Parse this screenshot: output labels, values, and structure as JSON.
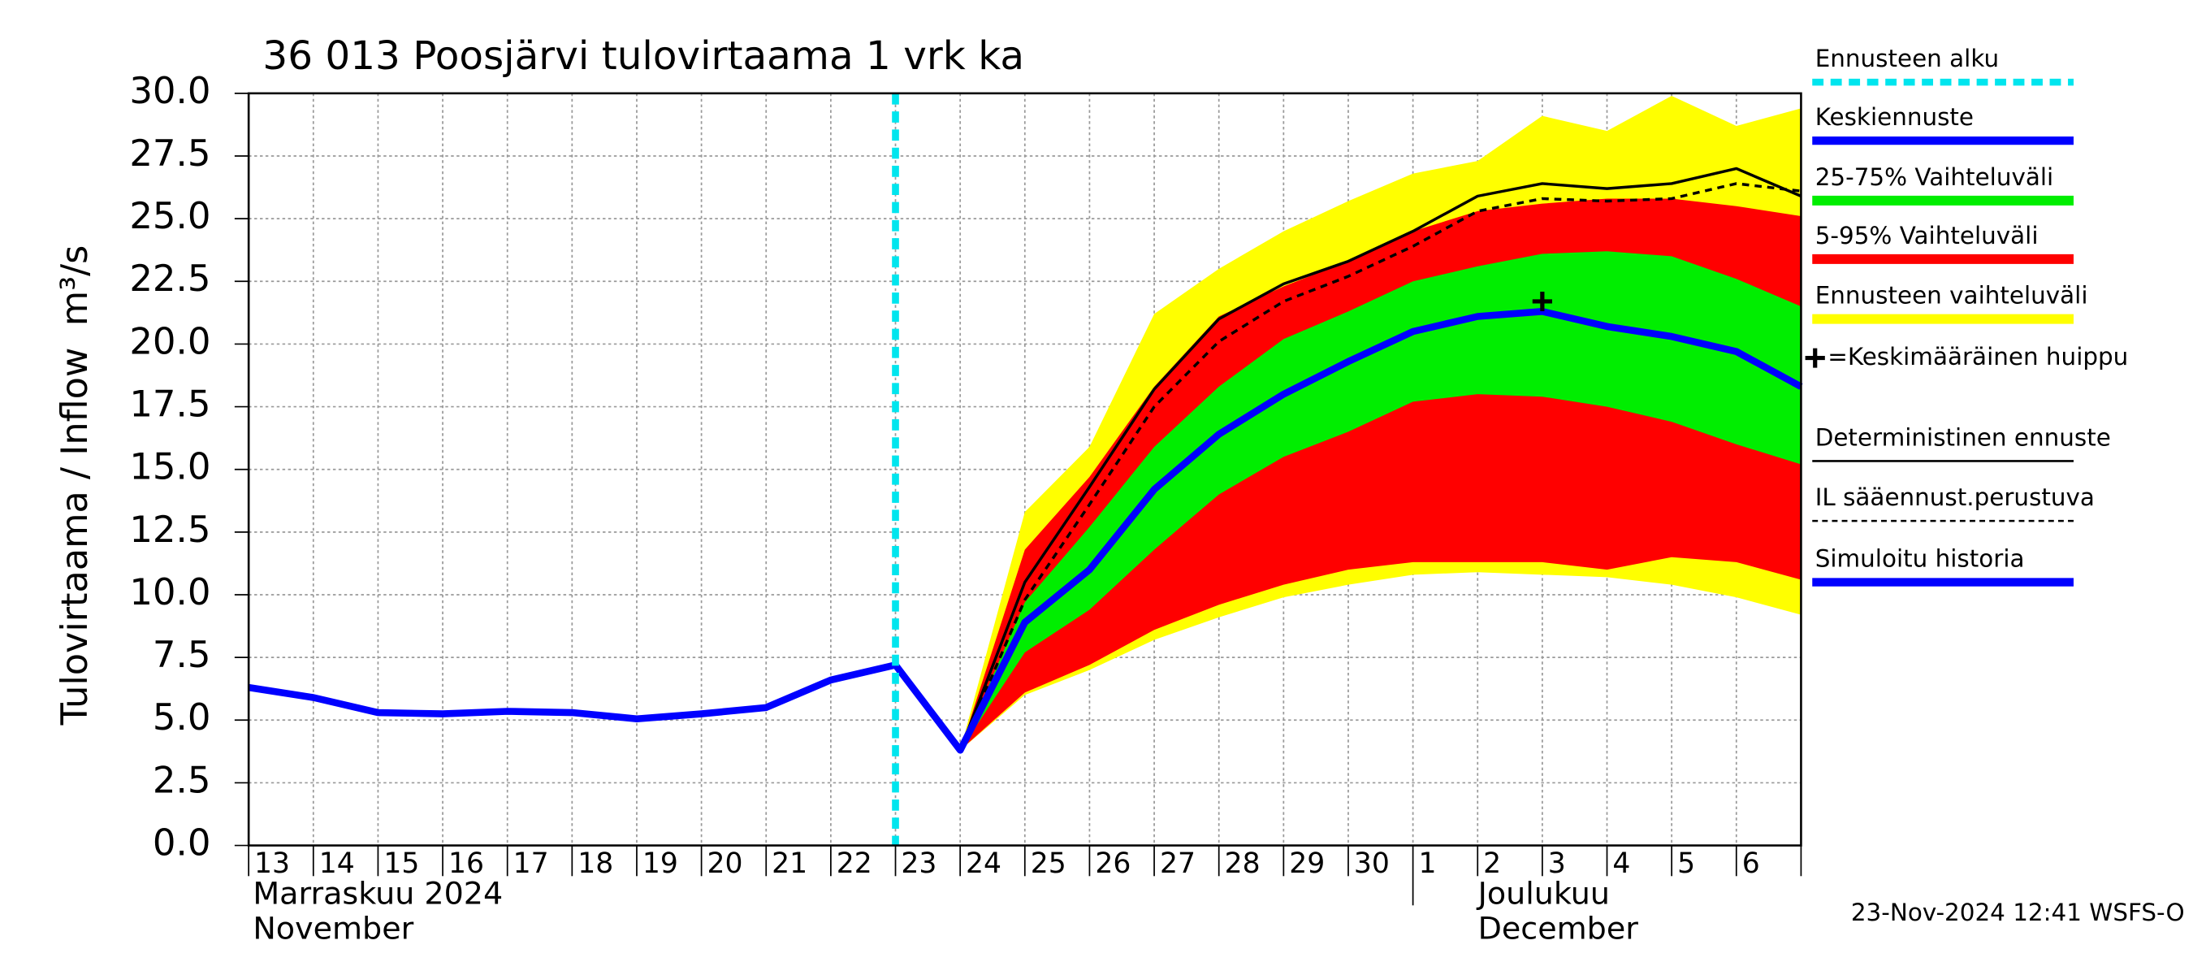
{
  "chart_data": {
    "type": "line",
    "title": "36 013 Poosjärvi tulovirtaama 1 vrk ka",
    "y_label": "Tulovirtaama / Inflow",
    "y_unit": "m³/s",
    "months": [
      [
        "Marraskuu 2024",
        "November"
      ],
      [
        "Joulukuu",
        "December"
      ]
    ],
    "timestamp": "23-Nov-2024 12:41 WSFS-O",
    "categories": [
      "13",
      "14",
      "15",
      "16",
      "17",
      "18",
      "19",
      "20",
      "21",
      "22",
      "23",
      "24",
      "25",
      "26",
      "27",
      "28",
      "29",
      "30",
      "1",
      "2",
      "3",
      "4",
      "5",
      "6",
      null
    ],
    "ylim": [
      0,
      30
    ],
    "yticks": [
      {
        "value": 0,
        "label": "0.0"
      },
      2.5,
      {
        "value": 5,
        "label": "5.0"
      },
      7.5,
      {
        "value": 10,
        "label": "10.0"
      },
      12.5,
      {
        "value": 15,
        "label": "15.0"
      },
      17.5,
      {
        "value": 20,
        "label": "20.0"
      },
      22.5,
      {
        "value": 25,
        "label": "25.0"
      },
      27.5,
      {
        "value": 30,
        "label": "30.0"
      }
    ],
    "grid": true,
    "series": [
      {
        "name": "Ennusteen alku",
        "color": "#00e5ee",
        "x": "23"
      },
      {
        "name": "Keskiennuste",
        "color": "#0000ff",
        "values": [
          null,
          null,
          null,
          null,
          null,
          null,
          null,
          null,
          null,
          null,
          7.2,
          3.8,
          8.9,
          11.0,
          14.2,
          16.4,
          18.0,
          19.3,
          20.5,
          21.1,
          21.3,
          20.7,
          20.3,
          19.7,
          18.3
        ]
      },
      {
        "name": "25-75% Vaihteluväli",
        "color": "#00ee00",
        "high": [
          null,
          null,
          null,
          null,
          null,
          null,
          null,
          null,
          null,
          null,
          null,
          3.8,
          9.7,
          12.7,
          15.9,
          18.3,
          20.2,
          21.3,
          22.5,
          23.1,
          23.6,
          23.7,
          23.5,
          22.6,
          21.5
        ],
        "low": [
          null,
          null,
          null,
          null,
          null,
          null,
          null,
          null,
          null,
          null,
          null,
          3.8,
          7.7,
          9.4,
          11.8,
          14.0,
          15.5,
          16.5,
          17.7,
          18.0,
          17.9,
          17.5,
          16.9,
          16.0,
          15.2
        ]
      },
      {
        "name": "5-95% Vaihteluväli",
        "color": "#ff0000",
        "high": [
          null,
          null,
          null,
          null,
          null,
          null,
          null,
          null,
          null,
          null,
          null,
          3.8,
          11.8,
          14.7,
          18.3,
          21.1,
          22.3,
          23.3,
          24.5,
          25.3,
          25.6,
          25.8,
          25.8,
          25.5,
          25.1
        ],
        "low": [
          null,
          null,
          null,
          null,
          null,
          null,
          null,
          null,
          null,
          null,
          null,
          3.8,
          6.1,
          7.2,
          8.6,
          9.6,
          10.4,
          11.0,
          11.3,
          11.3,
          11.3,
          11.0,
          11.5,
          11.3,
          10.6
        ]
      },
      {
        "name": "Ennusteen vaihteluväli",
        "color": "#ffff00",
        "high": [
          null,
          null,
          null,
          null,
          null,
          null,
          null,
          null,
          null,
          null,
          null,
          3.8,
          13.3,
          15.9,
          21.2,
          23.0,
          24.5,
          25.7,
          26.8,
          27.3,
          29.1,
          28.5,
          29.9,
          28.7,
          29.4
        ],
        "low": [
          null,
          null,
          null,
          null,
          null,
          null,
          null,
          null,
          null,
          null,
          null,
          3.8,
          6.0,
          7.0,
          8.2,
          9.1,
          9.9,
          10.4,
          10.8,
          10.9,
          10.8,
          10.7,
          10.4,
          9.9,
          9.2
        ]
      },
      {
        "name": "=Keskimääräinen huippu",
        "color": "#000000",
        "marker": "+",
        "values": [
          null,
          null,
          null,
          null,
          null,
          null,
          null,
          null,
          null,
          null,
          null,
          null,
          null,
          null,
          null,
          null,
          null,
          null,
          null,
          null,
          21.7,
          null,
          null,
          null,
          null
        ]
      },
      {
        "name": "Deterministinen ennuste",
        "color": "#000000",
        "values": [
          null,
          null,
          null,
          null,
          null,
          null,
          null,
          null,
          null,
          null,
          7.2,
          3.8,
          10.5,
          14.3,
          18.2,
          21.0,
          22.4,
          23.3,
          24.5,
          25.9,
          26.4,
          26.2,
          26.4,
          27.0,
          25.9
        ]
      },
      {
        "name": "IL sääennust.perustuva",
        "color": "#000000",
        "dash": true,
        "values": [
          null,
          null,
          null,
          null,
          null,
          null,
          null,
          null,
          null,
          null,
          null,
          3.8,
          9.8,
          13.6,
          17.5,
          20.1,
          21.7,
          22.7,
          23.9,
          25.3,
          25.8,
          25.7,
          25.8,
          26.4,
          26.1
        ]
      },
      {
        "name": "Simuloitu historia",
        "color": "#0000ff",
        "values": [
          6.3,
          5.9,
          5.3,
          5.25,
          5.35,
          5.3,
          5.05,
          5.25,
          5.5,
          6.6,
          7.2,
          null,
          null,
          null,
          null,
          null,
          null,
          null,
          null,
          null,
          null,
          null,
          null,
          null,
          null
        ]
      }
    ]
  }
}
